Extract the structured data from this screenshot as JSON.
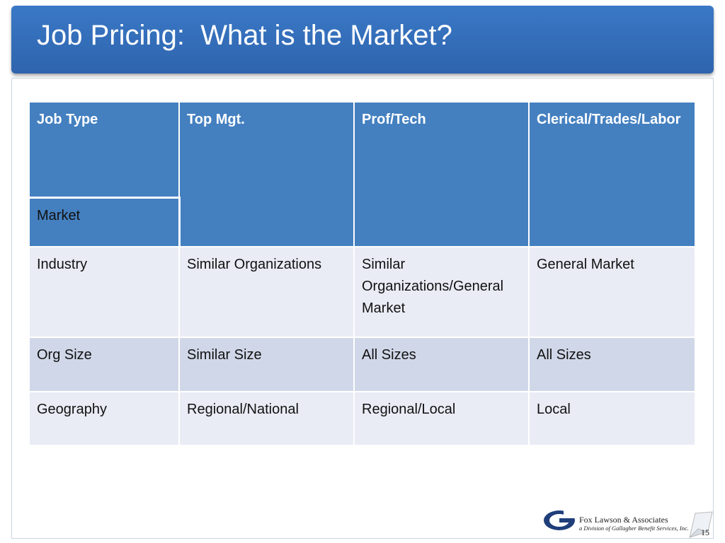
{
  "header": {
    "title": "Job Pricing:  What is the Market?"
  },
  "table": {
    "header": [
      "Job Type",
      "Top Mgt.",
      "Prof/Tech",
      "Clerical/Trades/Labor"
    ],
    "subheader": "Market",
    "rows": [
      [
        "Industry",
        "Similar Organizations",
        "Similar Organizations/General Market",
        "General Market"
      ],
      [
        "Org Size",
        "Similar Size",
        "All Sizes",
        "All Sizes"
      ],
      [
        "Geography",
        "Regional/National",
        "Regional/Local",
        "Local"
      ]
    ]
  },
  "footer": {
    "company": "Fox Lawson & Associates",
    "division": "a Division of Gallagher Benefit Services, Inc.",
    "page": "15"
  }
}
